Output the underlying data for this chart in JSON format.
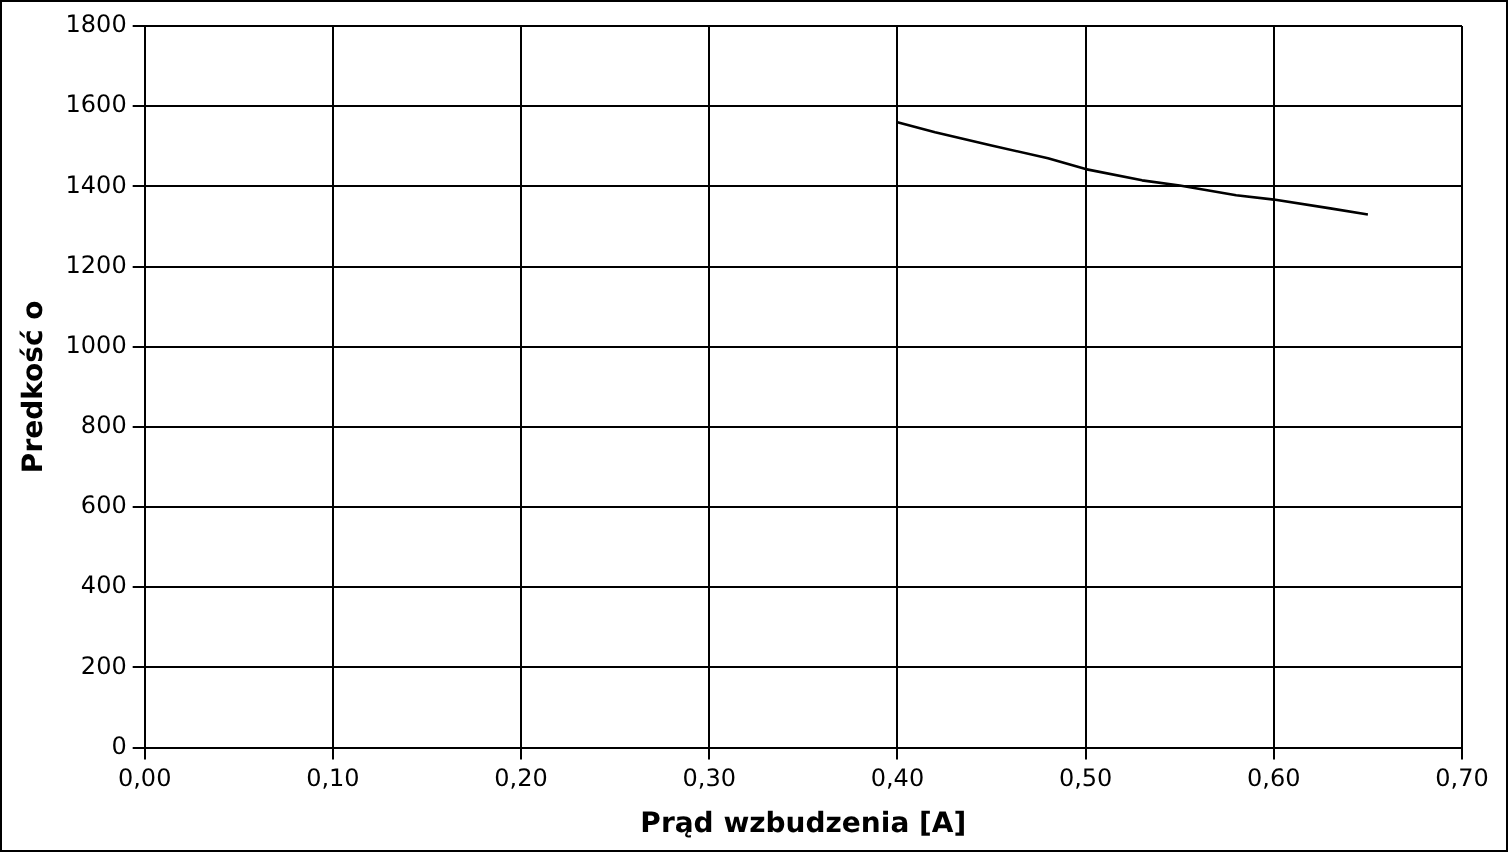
{
  "chart_data": {
    "type": "line",
    "xlabel": "Prąd wzbudzenia [A]",
    "ylabel": "Predkość o",
    "x": [
      0.4,
      0.42,
      0.45,
      0.48,
      0.5,
      0.53,
      0.55,
      0.58,
      0.6,
      0.63,
      0.65
    ],
    "series": [
      {
        "color": "#000000",
        "values": [
          1560,
          1535,
          1502,
          1470,
          1443,
          1415,
          1402,
          1378,
          1367,
          1345,
          1330
        ]
      }
    ],
    "xlim": [
      0,
      0.7
    ],
    "xticks": [
      {
        "value": 0,
        "label": "0,00"
      },
      {
        "value": 0.1,
        "label": "0,10"
      },
      {
        "value": 0.2,
        "label": "0,20"
      },
      {
        "value": 0.3,
        "label": "0,30"
      },
      {
        "value": 0.4,
        "label": "0,40"
      },
      {
        "value": 0.5,
        "label": "0,50"
      },
      {
        "value": 0.6,
        "label": "0,60"
      },
      {
        "value": 0.7,
        "label": "0,70"
      }
    ],
    "ylim": [
      0,
      1800
    ],
    "yticks": [
      0,
      200,
      400,
      600,
      800,
      1000,
      1200,
      1400,
      1600,
      1800
    ],
    "grid": true,
    "legend": false,
    "marker": "none",
    "line_style": "solid"
  }
}
